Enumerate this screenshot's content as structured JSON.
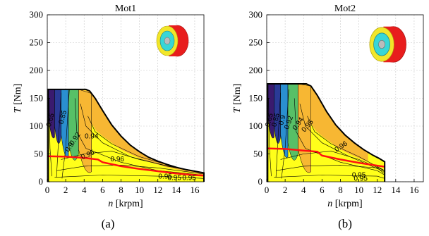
{
  "colors": {
    "yellow": "#ffff1a",
    "orange": "#f7b733",
    "green": "#57c067",
    "blue": "#2a8fd0",
    "darkblue": "#2a3a96",
    "indigo": "#3a1a6e",
    "red": "#ff1111",
    "grid": "#c8c8c8",
    "contour": "#000000",
    "motor_face": "#f2e629",
    "motor_body": "#e81d1d",
    "motor_inner": "#38d6d6"
  },
  "chart_data": [
    {
      "type": "area",
      "panel": "(a)",
      "title": "Mot1",
      "xlabel_var": "n",
      "xlabel_unit": "[krpm]",
      "ylabel_var": "T",
      "ylabel_unit": "[Nm]",
      "xlim": [
        0,
        17
      ],
      "ylim": [
        0,
        300
      ],
      "xticks": [
        "0",
        "2",
        "4",
        "6",
        "8",
        "10",
        "12",
        "14",
        "16"
      ],
      "yticks": [
        "0",
        "50",
        "100",
        "150",
        "200",
        "250",
        "300"
      ],
      "grid": true,
      "max_torque_envelope": {
        "n": [
          0.1,
          4.2,
          4.6,
          5.2,
          6,
          7,
          8,
          9,
          10,
          11,
          12,
          13,
          14,
          15,
          16,
          17
        ],
        "T": [
          166,
          166,
          163,
          150,
          128,
          102,
          82,
          66,
          54,
          44,
          37,
          31,
          26,
          22,
          19,
          16
        ]
      },
      "operating_line": {
        "n": [
          0,
          2,
          4,
          5.5,
          6,
          8,
          10,
          12,
          14,
          16,
          17
        ],
        "T": [
          46,
          45,
          43,
          40,
          35,
          28,
          23,
          19,
          15,
          12,
          11
        ]
      },
      "efficiency_bands": [
        {
          "region": "n 0.1–0.8 krpm",
          "color": "indigo"
        },
        {
          "region": "n 0.8–1.5 krpm",
          "color": "darkblue"
        },
        {
          "region": "n 1.5–2.3 krpm",
          "color": "blue"
        },
        {
          "region": "n 2.3–3.4 krpm",
          "color": "green"
        },
        {
          "region": "n 3.4–4.8 krpm",
          "color": "orange"
        },
        {
          "region": "high efficiency",
          "color": "yellow"
        }
      ],
      "contour_labels": [
        "0.65",
        "0.85",
        "0.9",
        "0.92",
        "0.94",
        "0.95",
        "0.96",
        "0.95",
        "0.95",
        "0.95"
      ]
    },
    {
      "type": "area",
      "panel": "(b)",
      "title": "Mot2",
      "xlabel_var": "n",
      "xlabel_unit": "[krpm]",
      "ylabel_var": "T",
      "ylabel_unit": "[Nm]",
      "xlim": [
        0,
        17
      ],
      "ylim": [
        0,
        300
      ],
      "xticks": [
        "0",
        "2",
        "4",
        "6",
        "8",
        "10",
        "12",
        "14",
        "16"
      ],
      "yticks": [
        "0",
        "50",
        "100",
        "150",
        "200",
        "250",
        "300"
      ],
      "grid": true,
      "max_torque_envelope": {
        "n": [
          0.1,
          4.3,
          4.8,
          5.5,
          6.5,
          7.5,
          8.5,
          9.5,
          10.5,
          11.5,
          12.2,
          12.6,
          12.8
        ],
        "T": [
          176,
          176,
          172,
          155,
          126,
          102,
          84,
          70,
          58,
          48,
          42,
          38,
          36
        ]
      },
      "operating_line": {
        "n": [
          0,
          2,
          4,
          5.5,
          6,
          8,
          10,
          12,
          12.8
        ],
        "T": [
          60,
          59,
          56,
          54,
          47,
          40,
          34,
          29,
          27
        ]
      },
      "efficiency_bands": [
        {
          "region": "n 0.1–0.8 krpm",
          "color": "indigo"
        },
        {
          "region": "n 0.8–1.5 krpm",
          "color": "darkblue"
        },
        {
          "region": "n 1.5–2.3 krpm",
          "color": "blue"
        },
        {
          "region": "n 2.3–3.4 krpm",
          "color": "green"
        },
        {
          "region": "n 3.4–4.8 krpm",
          "color": "orange"
        },
        {
          "region": "high efficiency",
          "color": "yellow"
        }
      ],
      "contour_labels": [
        "0.65",
        "0.85",
        "0.9",
        "0.92",
        "0.94",
        "0.95",
        "0.96",
        "0.95",
        "0.95"
      ]
    }
  ]
}
